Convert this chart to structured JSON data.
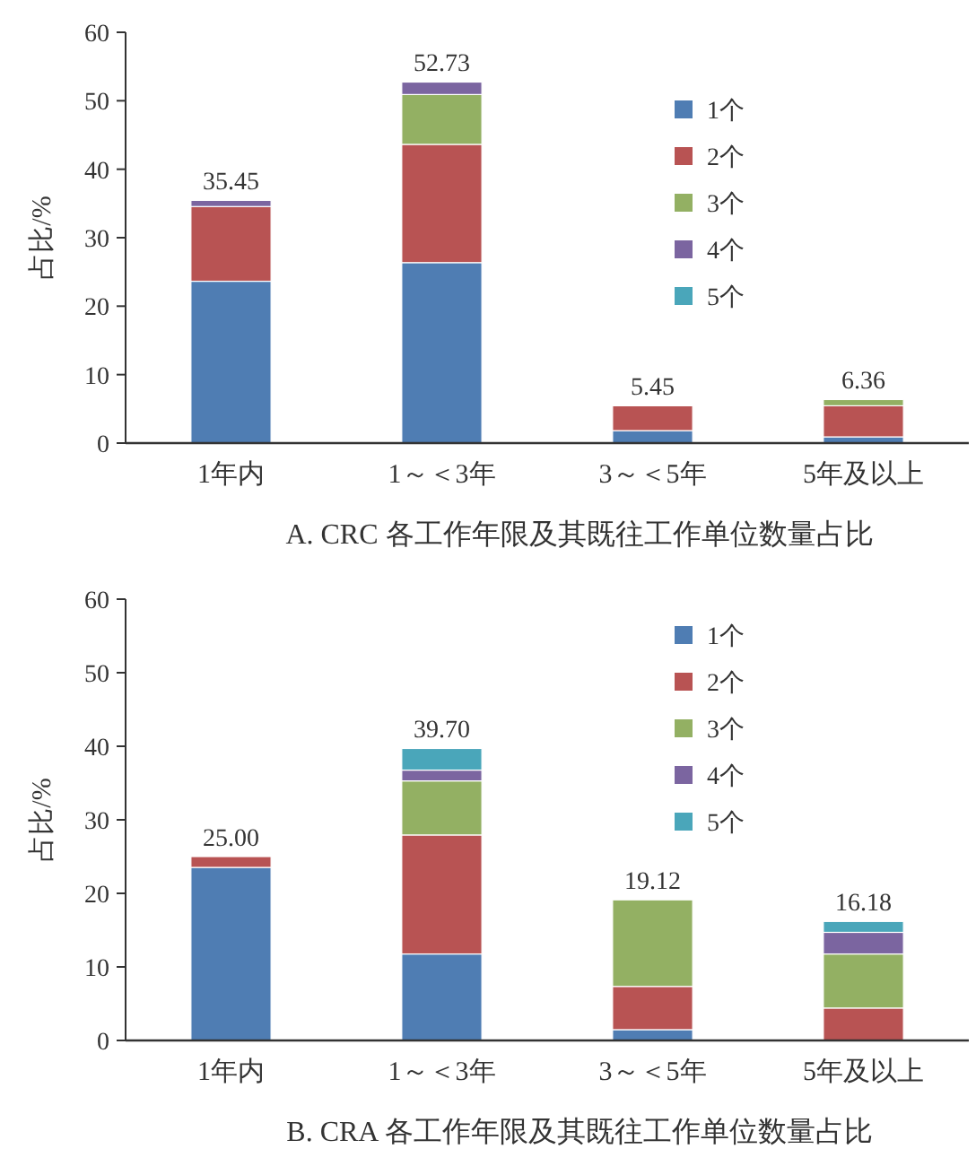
{
  "chart_data": [
    {
      "type": "bar",
      "stacked": true,
      "title": "A. CRC 各工作年限及其既往工作单位数量占比",
      "ylabel": "占比/%",
      "categories": [
        "1年内",
        "1～＜3年",
        "3～＜5年",
        "5年及以上"
      ],
      "ylim": [
        0,
        60
      ],
      "yticks": [
        0,
        10,
        20,
        30,
        40,
        50,
        60
      ],
      "legend": "top right",
      "totals": [
        "35.45",
        "52.73",
        "5.45",
        "6.36"
      ],
      "series": [
        {
          "name": "1个",
          "color": "#4f7db3",
          "values": [
            23.64,
            26.36,
            1.82,
            0.91
          ]
        },
        {
          "name": "2个",
          "color": "#b85353",
          "values": [
            10.91,
            17.27,
            3.63,
            4.54
          ]
        },
        {
          "name": "3个",
          "color": "#93b063",
          "values": [
            null,
            7.28,
            null,
            0.91
          ]
        },
        {
          "name": "4个",
          "color": "#7b65a0",
          "values": [
            0.9,
            1.82,
            null,
            null
          ]
        },
        {
          "name": "5个",
          "color": "#4aa6ba",
          "values": [
            null,
            null,
            null,
            null
          ]
        }
      ]
    },
    {
      "type": "bar",
      "stacked": true,
      "title": "B. CRA 各工作年限及其既往工作单位数量占比",
      "ylabel": "占比/%",
      "categories": [
        "1年内",
        "1～＜3年",
        "3～＜5年",
        "5年及以上"
      ],
      "ylim": [
        0,
        60
      ],
      "yticks": [
        0,
        10,
        20,
        30,
        40,
        50,
        60
      ],
      "legend": "top right",
      "totals": [
        "25.00",
        "39.70",
        "19.12",
        "16.18"
      ],
      "series": [
        {
          "name": "1个",
          "color": "#4f7db3",
          "values": [
            23.53,
            11.76,
            1.47,
            null
          ]
        },
        {
          "name": "2个",
          "color": "#b85353",
          "values": [
            1.47,
            16.18,
            5.88,
            4.41
          ]
        },
        {
          "name": "3个",
          "color": "#93b063",
          "values": [
            null,
            7.35,
            11.77,
            7.35
          ]
        },
        {
          "name": "4个",
          "color": "#7b65a0",
          "values": [
            null,
            1.47,
            null,
            2.94
          ]
        },
        {
          "name": "5个",
          "color": "#4aa6ba",
          "values": [
            null,
            2.94,
            null,
            1.48
          ]
        }
      ]
    }
  ]
}
